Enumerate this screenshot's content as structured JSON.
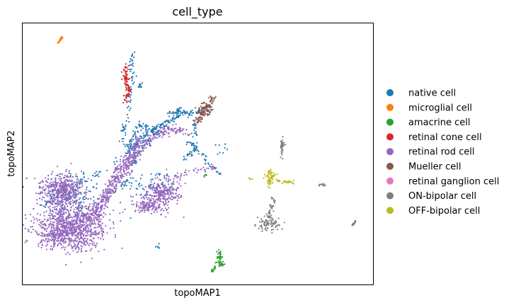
{
  "chart_data": {
    "type": "scatter",
    "title": "cell_type",
    "xlabel": "topoMAP1",
    "ylabel": "topoMAP2",
    "xlim": [
      0,
      100
    ],
    "ylim": [
      0,
      100
    ],
    "grid": false,
    "legend_position": "right",
    "series": [
      {
        "name": "native cell",
        "color": "#1f77b4",
        "clusters": [
          {
            "cx": 14,
            "cy": 35,
            "sx": 5,
            "sy": 5,
            "n": 140
          },
          {
            "cx": 37,
            "cy": 38,
            "sx": 4,
            "sy": 3,
            "n": 60
          },
          {
            "cx": 44,
            "cy": 66,
            "sx": 1.4,
            "sy": 0.7,
            "n": 40
          },
          {
            "cx": 48,
            "cy": 54,
            "sx": 0.5,
            "sy": 0.4,
            "n": 10
          },
          {
            "cx": 56,
            "cy": 52,
            "sx": 1,
            "sy": 1.5,
            "n": 8
          },
          {
            "cx": 38.5,
            "cy": 14.5,
            "sx": 0.3,
            "sy": 0.5,
            "n": 6
          },
          {
            "cx": 33.5,
            "cy": 76,
            "sx": 0.4,
            "sy": 1.2,
            "n": 10
          }
        ],
        "paths": [
          {
            "points": [
              [
                30,
                50
              ],
              [
                34,
                56
              ],
              [
                38,
                60
              ],
              [
                44,
                64
              ],
              [
                48,
                66
              ],
              [
                53,
                67
              ]
            ],
            "n": 160,
            "spread": 0.6
          },
          {
            "points": [
              [
                28,
                36
              ],
              [
                31,
                44
              ],
              [
                33,
                50
              ],
              [
                36,
                55
              ],
              [
                39,
                60
              ]
            ],
            "n": 60,
            "spread": 0.5
          },
          {
            "points": [
              [
                31.5,
                88
              ],
              [
                31,
                84
              ],
              [
                31.5,
                80
              ],
              [
                31,
                76
              ],
              [
                30,
                66
              ],
              [
                29,
                60
              ],
              [
                28,
                54
              ]
            ],
            "n": 70,
            "spread": 0.5
          },
          {
            "points": [
              [
                30,
                52
              ],
              [
                32,
                58
              ],
              [
                34,
                62
              ],
              [
                37,
                59
              ],
              [
                40,
                58
              ]
            ],
            "n": 60,
            "spread": 0.6
          },
          {
            "points": [
              [
                49,
                62
              ],
              [
                49.5,
                56
              ],
              [
                48,
                50
              ],
              [
                46,
                46
              ]
            ],
            "n": 40,
            "spread": 0.5
          },
          {
            "points": [
              [
                49,
                53
              ],
              [
                52,
                48
              ],
              [
                55,
                44
              ],
              [
                56.5,
                42
              ]
            ],
            "n": 40,
            "spread": 0.4
          },
          {
            "points": [
              [
                5,
                28
              ],
              [
                12,
                38
              ],
              [
                20,
                42
              ],
              [
                26,
                46
              ],
              [
                30,
                50
              ]
            ],
            "n": 40,
            "spread": 0.8
          }
        ]
      },
      {
        "name": "microglial cell",
        "color": "#ff7f0e",
        "paths": [
          {
            "points": [
              [
                10,
                92.5
              ],
              [
                11.5,
                95
              ]
            ],
            "n": 30,
            "spread": 0.15
          }
        ]
      },
      {
        "name": "amacrine cell",
        "color": "#2ca02c",
        "clusters": [
          {
            "cx": 56.3,
            "cy": 10.5,
            "sx": 0.4,
            "sy": 1.6,
            "n": 30
          },
          {
            "cx": 56.5,
            "cy": 8,
            "sx": 0.9,
            "sy": 0.5,
            "n": 22
          },
          {
            "cx": 52.2,
            "cy": 41.7,
            "sx": 0.2,
            "sy": 0.3,
            "n": 5
          }
        ],
        "paths": [
          {
            "points": [
              [
                55,
                7
              ],
              [
                53.8,
                4.7
              ]
            ],
            "n": 12,
            "spread": 0.2
          }
        ]
      },
      {
        "name": "retinal cone cell",
        "color": "#d62728",
        "paths": [
          {
            "points": [
              [
                29.5,
                84
              ],
              [
                29.5,
                79
              ],
              [
                30,
                74
              ],
              [
                29.5,
                70
              ]
            ],
            "n": 90,
            "spread": 0.45
          }
        ]
      },
      {
        "name": "retinal rod cell",
        "color": "#9467bd",
        "clusters": [
          {
            "cx": 11.5,
            "cy": 36,
            "sx": 2.8,
            "sy": 3.2,
            "n": 450
          },
          {
            "cx": 14,
            "cy": 22,
            "sx": 5,
            "sy": 4.5,
            "n": 900
          },
          {
            "cx": 40,
            "cy": 35,
            "sx": 2.5,
            "sy": 3,
            "n": 260
          },
          {
            "cx": 36,
            "cy": 30,
            "sx": 2.2,
            "sy": 1.5,
            "n": 120
          },
          {
            "cx": 9,
            "cy": 19,
            "sx": 1.5,
            "sy": 2,
            "n": 80
          }
        ],
        "paths": [
          {
            "points": [
              [
                18,
                25
              ],
              [
                21,
                29
              ],
              [
                24,
                34
              ],
              [
                27,
                40
              ],
              [
                30,
                46
              ],
              [
                33,
                52
              ],
              [
                37,
                57
              ],
              [
                42,
                59.5
              ],
              [
                47,
                58
              ]
            ],
            "n": 420,
            "spread": 0.9
          },
          {
            "points": [
              [
                21,
                24
              ],
              [
                23,
                30
              ],
              [
                25,
                38
              ],
              [
                27,
                44
              ],
              [
                30,
                48.5
              ],
              [
                33,
                49
              ]
            ],
            "n": 150,
            "spread": 0.6
          },
          {
            "points": [
              [
                30,
                46
              ],
              [
                31,
                50
              ],
              [
                32,
                54
              ],
              [
                33.5,
                57
              ]
            ],
            "n": 40,
            "spread": 0.5
          },
          {
            "points": [
              [
                43,
                40
              ],
              [
                47,
                43
              ],
              [
                51,
                44
              ],
              [
                54,
                44.2
              ]
            ],
            "n": 30,
            "spread": 0.5
          }
        ]
      },
      {
        "name": "Mueller cell",
        "color": "#8c564b",
        "clusters": [
          {
            "cx": 52,
            "cy": 67,
            "sx": 1,
            "sy": 1.3,
            "n": 45
          }
        ],
        "paths": [
          {
            "points": [
              [
                49.5,
                62
              ],
              [
                51,
                65
              ],
              [
                52.5,
                68
              ],
              [
                53.5,
                70
              ],
              [
                54.5,
                71.5
              ]
            ],
            "n": 90,
            "spread": 0.55
          }
        ]
      },
      {
        "name": "retinal ganglion cell",
        "color": "#e377c2",
        "clusters": [
          {
            "cx": 54.2,
            "cy": 44.3,
            "sx": 0.25,
            "sy": 0.25,
            "n": 10
          }
        ]
      },
      {
        "name": "ON-bipolar cell",
        "color": "#7f7f7f",
        "clusters": [
          {
            "cx": 70,
            "cy": 23,
            "sx": 1.6,
            "sy": 1.3,
            "n": 80
          },
          {
            "cx": 74,
            "cy": 53,
            "sx": 0.3,
            "sy": 1.7,
            "n": 40
          },
          {
            "cx": 85.5,
            "cy": 38,
            "sx": 0.6,
            "sy": 0.25,
            "n": 12
          }
        ],
        "paths": [
          {
            "points": [
              [
                70,
                25
              ],
              [
                71,
                28
              ],
              [
                71.5,
                31
              ],
              [
                71.2,
                34
              ]
            ],
            "n": 40,
            "spread": 0.35
          },
          {
            "points": [
              [
                94,
                22.5
              ],
              [
                95.2,
                24.5
              ]
            ],
            "n": 15,
            "spread": 0.12
          }
        ]
      },
      {
        "name": "OFF-bipolar cell",
        "color": "#bcbd22",
        "clusters": [
          {
            "cx": 70.8,
            "cy": 41.5,
            "sx": 0.7,
            "sy": 1.3,
            "n": 50
          },
          {
            "cx": 65,
            "cy": 40.5,
            "sx": 0.3,
            "sy": 0.2,
            "n": 6
          }
        ],
        "paths": [
          {
            "points": [
              [
                72,
                39.8
              ],
              [
                75,
                39.3
              ],
              [
                77.5,
                39
              ]
            ],
            "n": 35,
            "spread": 0.3
          },
          {
            "points": [
              [
                70.5,
                40
              ],
              [
                70.3,
                37
              ]
            ],
            "n": 12,
            "spread": 0.2
          }
        ]
      }
    ]
  }
}
